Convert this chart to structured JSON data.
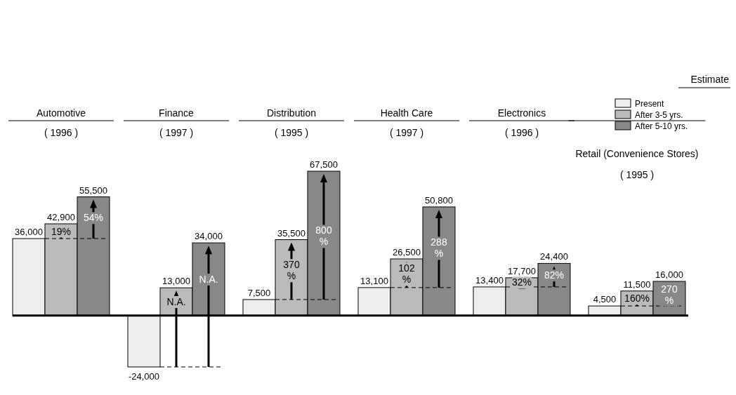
{
  "chart_data": {
    "type": "bar",
    "legend_title": "Estimate",
    "legend": "top right",
    "categories": [
      "Automotive\n( 1996 )",
      "Finance\n( 1997 )",
      "Distribution\n( 1995 )",
      "Health Care\n( 1997 )",
      "Electronics\n( 1996 )",
      "Retail (Convenience Stores)\n( 1995 )"
    ],
    "series": [
      {
        "name": "Present",
        "color": "#eeeeee",
        "values": [
          36000,
          -24000,
          7500,
          13100,
          13400,
          4500
        ],
        "value_labels": [
          "36,000",
          "-24,000",
          "7,500",
          "13,100",
          "13,400",
          "4,500"
        ]
      },
      {
        "name": "After 3-5 yrs.",
        "color": "#bbbbbb",
        "values": [
          42900,
          13000,
          35500,
          26500,
          17700,
          11500
        ],
        "value_labels": [
          "42,900",
          "13,000",
          "35,500",
          "26,500",
          "17,700",
          "11,500"
        ]
      },
      {
        "name": "After 5-10 yrs.",
        "color": "#888888",
        "values": [
          55500,
          34000,
          67500,
          50800,
          24400,
          16000
        ],
        "value_labels": [
          "55,500",
          "34,000",
          "67,500",
          "50,800",
          "24,400",
          "16,000"
        ]
      }
    ],
    "annotations": [
      "19%",
      "54%",
      "N.A.",
      "N.A.",
      "370 %",
      "800 %",
      "102 %",
      "288 %",
      "32%",
      "82%",
      "160%",
      "270 %"
    ]
  }
}
